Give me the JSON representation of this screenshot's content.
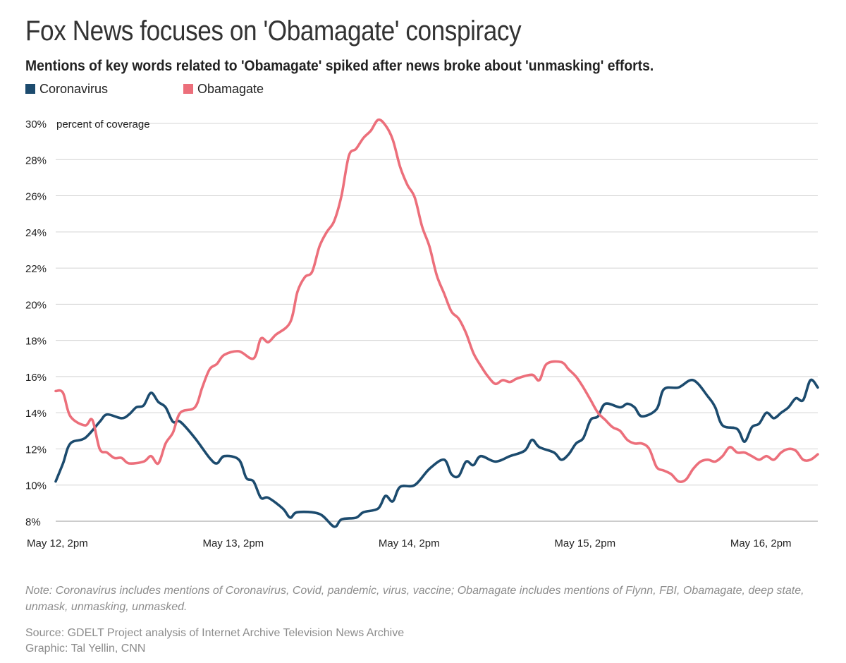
{
  "header": {
    "title": "Fox News focuses on 'Obamagate' conspiracy",
    "subtitle": "Mentions of key words related to 'Obamagate' spiked after news broke about 'unmasking' efforts."
  },
  "footer": {
    "note": "Note: Coronavirus includes mentions of Coronavirus, Covid, pandemic, virus, vaccine; Obamagate includes mentions of Flynn, FBI, Obamagate, deep state, unmask, unmasking, unmasked.",
    "source": "Source: GDELT Project analysis of Internet Archive Television News Archive",
    "credit": "Graphic: Tal Yellin, CNN"
  },
  "chart_data": {
    "type": "line",
    "title": "Fox News focuses on 'Obamagate' conspiracy",
    "subtitle": "Mentions of key words related to 'Obamagate' spiked after news broke about 'unmasking' efforts.",
    "ylabel": "percent of coverage",
    "xlabel": "",
    "ylim": [
      8,
      30
    ],
    "yticks": [
      8,
      10,
      12,
      14,
      16,
      18,
      20,
      22,
      24,
      26,
      28,
      30
    ],
    "ytick_labels": [
      "8%",
      "10%",
      "12%",
      "14%",
      "16%",
      "18%",
      "20%",
      "22%",
      "24%",
      "26%",
      "28%",
      "30%"
    ],
    "xlim": [
      "2020-05-12 14:00",
      "2020-05-16 22:00"
    ],
    "xticks": [
      "2020-05-12 14:00",
      "2020-05-13 14:00",
      "2020-05-14 14:00",
      "2020-05-15 14:00",
      "2020-05-16 14:00"
    ],
    "xtick_labels": [
      "May 12, 2pm",
      "May 13, 2pm",
      "May 14, 2pm",
      "May 15, 2pm",
      "May 16, 2pm"
    ],
    "grid": "horizontal",
    "legend": "top-left",
    "series": [
      {
        "name": "Coronavirus",
        "color": "#1c4b6e",
        "points": [
          [
            "2020-05-12 14:00",
            10.2
          ],
          [
            "2020-05-12 15:00",
            11.2
          ],
          [
            "2020-05-12 16:00",
            12.3
          ],
          [
            "2020-05-12 18:00",
            12.6
          ],
          [
            "2020-05-12 20:00",
            13.5
          ],
          [
            "2020-05-12 21:00",
            13.9
          ],
          [
            "2020-05-12 23:00",
            13.7
          ],
          [
            "2020-05-13 00:00",
            13.9
          ],
          [
            "2020-05-13 01:00",
            14.3
          ],
          [
            "2020-05-13 02:00",
            14.4
          ],
          [
            "2020-05-13 03:00",
            15.1
          ],
          [
            "2020-05-13 04:00",
            14.6
          ],
          [
            "2020-05-13 05:00",
            14.3
          ],
          [
            "2020-05-13 06:00",
            13.5
          ],
          [
            "2020-05-13 07:00",
            13.5
          ],
          [
            "2020-05-13 09:00",
            12.6
          ],
          [
            "2020-05-13 11:00",
            11.5
          ],
          [
            "2020-05-13 12:00",
            11.2
          ],
          [
            "2020-05-13 13:00",
            11.6
          ],
          [
            "2020-05-13 15:00",
            11.4
          ],
          [
            "2020-05-13 16:00",
            10.4
          ],
          [
            "2020-05-13 17:00",
            10.2
          ],
          [
            "2020-05-13 18:00",
            9.3
          ],
          [
            "2020-05-13 19:00",
            9.3
          ],
          [
            "2020-05-13 21:00",
            8.7
          ],
          [
            "2020-05-13 22:00",
            8.2
          ],
          [
            "2020-05-13 23:00",
            8.5
          ],
          [
            "2020-05-14 02:00",
            8.4
          ],
          [
            "2020-05-14 04:00",
            7.7
          ],
          [
            "2020-05-14 05:00",
            8.1
          ],
          [
            "2020-05-14 07:00",
            8.2
          ],
          [
            "2020-05-14 08:00",
            8.5
          ],
          [
            "2020-05-14 10:00",
            8.7
          ],
          [
            "2020-05-14 11:00",
            9.4
          ],
          [
            "2020-05-14 12:00",
            9.1
          ],
          [
            "2020-05-14 13:00",
            9.9
          ],
          [
            "2020-05-14 15:00",
            10.0
          ],
          [
            "2020-05-14 17:00",
            10.9
          ],
          [
            "2020-05-14 19:00",
            11.4
          ],
          [
            "2020-05-14 20:00",
            10.6
          ],
          [
            "2020-05-14 21:00",
            10.5
          ],
          [
            "2020-05-14 22:00",
            11.3
          ],
          [
            "2020-05-14 23:00",
            11.1
          ],
          [
            "2020-05-15 00:00",
            11.6
          ],
          [
            "2020-05-15 02:00",
            11.3
          ],
          [
            "2020-05-15 04:00",
            11.6
          ],
          [
            "2020-05-15 06:00",
            11.9
          ],
          [
            "2020-05-15 07:00",
            12.5
          ],
          [
            "2020-05-15 08:00",
            12.1
          ],
          [
            "2020-05-15 10:00",
            11.8
          ],
          [
            "2020-05-15 11:00",
            11.4
          ],
          [
            "2020-05-15 12:00",
            11.7
          ],
          [
            "2020-05-15 13:00",
            12.3
          ],
          [
            "2020-05-15 14:00",
            12.6
          ],
          [
            "2020-05-15 15:00",
            13.6
          ],
          [
            "2020-05-15 16:00",
            13.8
          ],
          [
            "2020-05-15 17:00",
            14.5
          ],
          [
            "2020-05-15 19:00",
            14.3
          ],
          [
            "2020-05-15 20:00",
            14.5
          ],
          [
            "2020-05-15 21:00",
            14.3
          ],
          [
            "2020-05-15 22:00",
            13.8
          ],
          [
            "2020-05-16 00:00",
            14.2
          ],
          [
            "2020-05-16 01:00",
            15.3
          ],
          [
            "2020-05-16 03:00",
            15.4
          ],
          [
            "2020-05-16 05:00",
            15.8
          ],
          [
            "2020-05-16 07:00",
            14.9
          ],
          [
            "2020-05-16 08:00",
            14.3
          ],
          [
            "2020-05-16 09:00",
            13.3
          ],
          [
            "2020-05-16 11:00",
            13.1
          ],
          [
            "2020-05-16 12:00",
            12.4
          ],
          [
            "2020-05-16 13:00",
            13.2
          ],
          [
            "2020-05-16 14:00",
            13.4
          ],
          [
            "2020-05-16 15:00",
            14.0
          ],
          [
            "2020-05-16 16:00",
            13.7
          ],
          [
            "2020-05-16 17:00",
            14.0
          ],
          [
            "2020-05-16 18:00",
            14.3
          ],
          [
            "2020-05-16 19:00",
            14.8
          ],
          [
            "2020-05-16 20:00",
            14.7
          ],
          [
            "2020-05-16 21:00",
            15.8
          ],
          [
            "2020-05-16 22:00",
            15.4
          ]
        ]
      },
      {
        "name": "Obamagate",
        "color": "#ec6f7b",
        "points": [
          [
            "2020-05-12 14:00",
            15.2
          ],
          [
            "2020-05-12 15:00",
            15.1
          ],
          [
            "2020-05-12 16:00",
            13.8
          ],
          [
            "2020-05-12 18:00",
            13.3
          ],
          [
            "2020-05-12 19:00",
            13.6
          ],
          [
            "2020-05-12 20:00",
            12.0
          ],
          [
            "2020-05-12 21:00",
            11.8
          ],
          [
            "2020-05-12 22:00",
            11.5
          ],
          [
            "2020-05-12 23:00",
            11.5
          ],
          [
            "2020-05-13 00:00",
            11.2
          ],
          [
            "2020-05-13 02:00",
            11.3
          ],
          [
            "2020-05-13 03:00",
            11.6
          ],
          [
            "2020-05-13 04:00",
            11.2
          ],
          [
            "2020-05-13 05:00",
            12.3
          ],
          [
            "2020-05-13 06:00",
            12.9
          ],
          [
            "2020-05-13 07:00",
            14.0
          ],
          [
            "2020-05-13 09:00",
            14.3
          ],
          [
            "2020-05-13 10:00",
            15.4
          ],
          [
            "2020-05-13 11:00",
            16.4
          ],
          [
            "2020-05-13 12:00",
            16.7
          ],
          [
            "2020-05-13 13:00",
            17.2
          ],
          [
            "2020-05-13 15:00",
            17.4
          ],
          [
            "2020-05-13 17:00",
            17.0
          ],
          [
            "2020-05-13 18:00",
            18.1
          ],
          [
            "2020-05-13 19:00",
            17.9
          ],
          [
            "2020-05-13 20:00",
            18.3
          ],
          [
            "2020-05-13 22:00",
            19.0
          ],
          [
            "2020-05-13 23:00",
            20.7
          ],
          [
            "2020-05-14 00:00",
            21.5
          ],
          [
            "2020-05-14 01:00",
            21.8
          ],
          [
            "2020-05-14 02:00",
            23.2
          ],
          [
            "2020-05-14 03:00",
            24.0
          ],
          [
            "2020-05-14 04:00",
            24.6
          ],
          [
            "2020-05-14 05:00",
            26.0
          ],
          [
            "2020-05-14 06:00",
            28.2
          ],
          [
            "2020-05-14 07:00",
            28.6
          ],
          [
            "2020-05-14 08:00",
            29.2
          ],
          [
            "2020-05-14 09:00",
            29.6
          ],
          [
            "2020-05-14 10:00",
            30.2
          ],
          [
            "2020-05-14 11:00",
            29.9
          ],
          [
            "2020-05-14 12:00",
            29.1
          ],
          [
            "2020-05-14 13:00",
            27.6
          ],
          [
            "2020-05-14 14:00",
            26.6
          ],
          [
            "2020-05-14 15:00",
            25.9
          ],
          [
            "2020-05-14 16:00",
            24.3
          ],
          [
            "2020-05-14 17:00",
            23.2
          ],
          [
            "2020-05-14 18:00",
            21.6
          ],
          [
            "2020-05-14 19:00",
            20.6
          ],
          [
            "2020-05-14 20:00",
            19.6
          ],
          [
            "2020-05-14 21:00",
            19.2
          ],
          [
            "2020-05-14 22:00",
            18.4
          ],
          [
            "2020-05-14 23:00",
            17.3
          ],
          [
            "2020-05-15 00:00",
            16.6
          ],
          [
            "2020-05-15 01:00",
            16.0
          ],
          [
            "2020-05-15 02:00",
            15.6
          ],
          [
            "2020-05-15 03:00",
            15.8
          ],
          [
            "2020-05-15 04:00",
            15.7
          ],
          [
            "2020-05-15 05:00",
            15.9
          ],
          [
            "2020-05-15 07:00",
            16.1
          ],
          [
            "2020-05-15 08:00",
            15.8
          ],
          [
            "2020-05-15 09:00",
            16.7
          ],
          [
            "2020-05-15 11:00",
            16.8
          ],
          [
            "2020-05-15 12:00",
            16.4
          ],
          [
            "2020-05-15 13:00",
            16.0
          ],
          [
            "2020-05-15 14:00",
            15.4
          ],
          [
            "2020-05-15 15:00",
            14.7
          ],
          [
            "2020-05-15 16:00",
            14.0
          ],
          [
            "2020-05-15 17:00",
            13.6
          ],
          [
            "2020-05-15 18:00",
            13.2
          ],
          [
            "2020-05-15 19:00",
            13.0
          ],
          [
            "2020-05-15 20:00",
            12.5
          ],
          [
            "2020-05-15 21:00",
            12.3
          ],
          [
            "2020-05-15 22:00",
            12.3
          ],
          [
            "2020-05-15 23:00",
            12.0
          ],
          [
            "2020-05-16 00:00",
            11.0
          ],
          [
            "2020-05-16 01:00",
            10.8
          ],
          [
            "2020-05-16 02:00",
            10.6
          ],
          [
            "2020-05-16 03:00",
            10.2
          ],
          [
            "2020-05-16 04:00",
            10.3
          ],
          [
            "2020-05-16 05:00",
            10.9
          ],
          [
            "2020-05-16 06:00",
            11.3
          ],
          [
            "2020-05-16 07:00",
            11.4
          ],
          [
            "2020-05-16 08:00",
            11.3
          ],
          [
            "2020-05-16 09:00",
            11.6
          ],
          [
            "2020-05-16 10:00",
            12.1
          ],
          [
            "2020-05-16 11:00",
            11.8
          ],
          [
            "2020-05-16 12:00",
            11.8
          ],
          [
            "2020-05-16 13:00",
            11.6
          ],
          [
            "2020-05-16 14:00",
            11.4
          ],
          [
            "2020-05-16 15:00",
            11.6
          ],
          [
            "2020-05-16 16:00",
            11.4
          ],
          [
            "2020-05-16 17:00",
            11.8
          ],
          [
            "2020-05-16 18:00",
            12.0
          ],
          [
            "2020-05-16 19:00",
            11.9
          ],
          [
            "2020-05-16 20:00",
            11.4
          ],
          [
            "2020-05-16 21:00",
            11.4
          ],
          [
            "2020-05-16 22:00",
            11.7
          ]
        ]
      }
    ]
  }
}
